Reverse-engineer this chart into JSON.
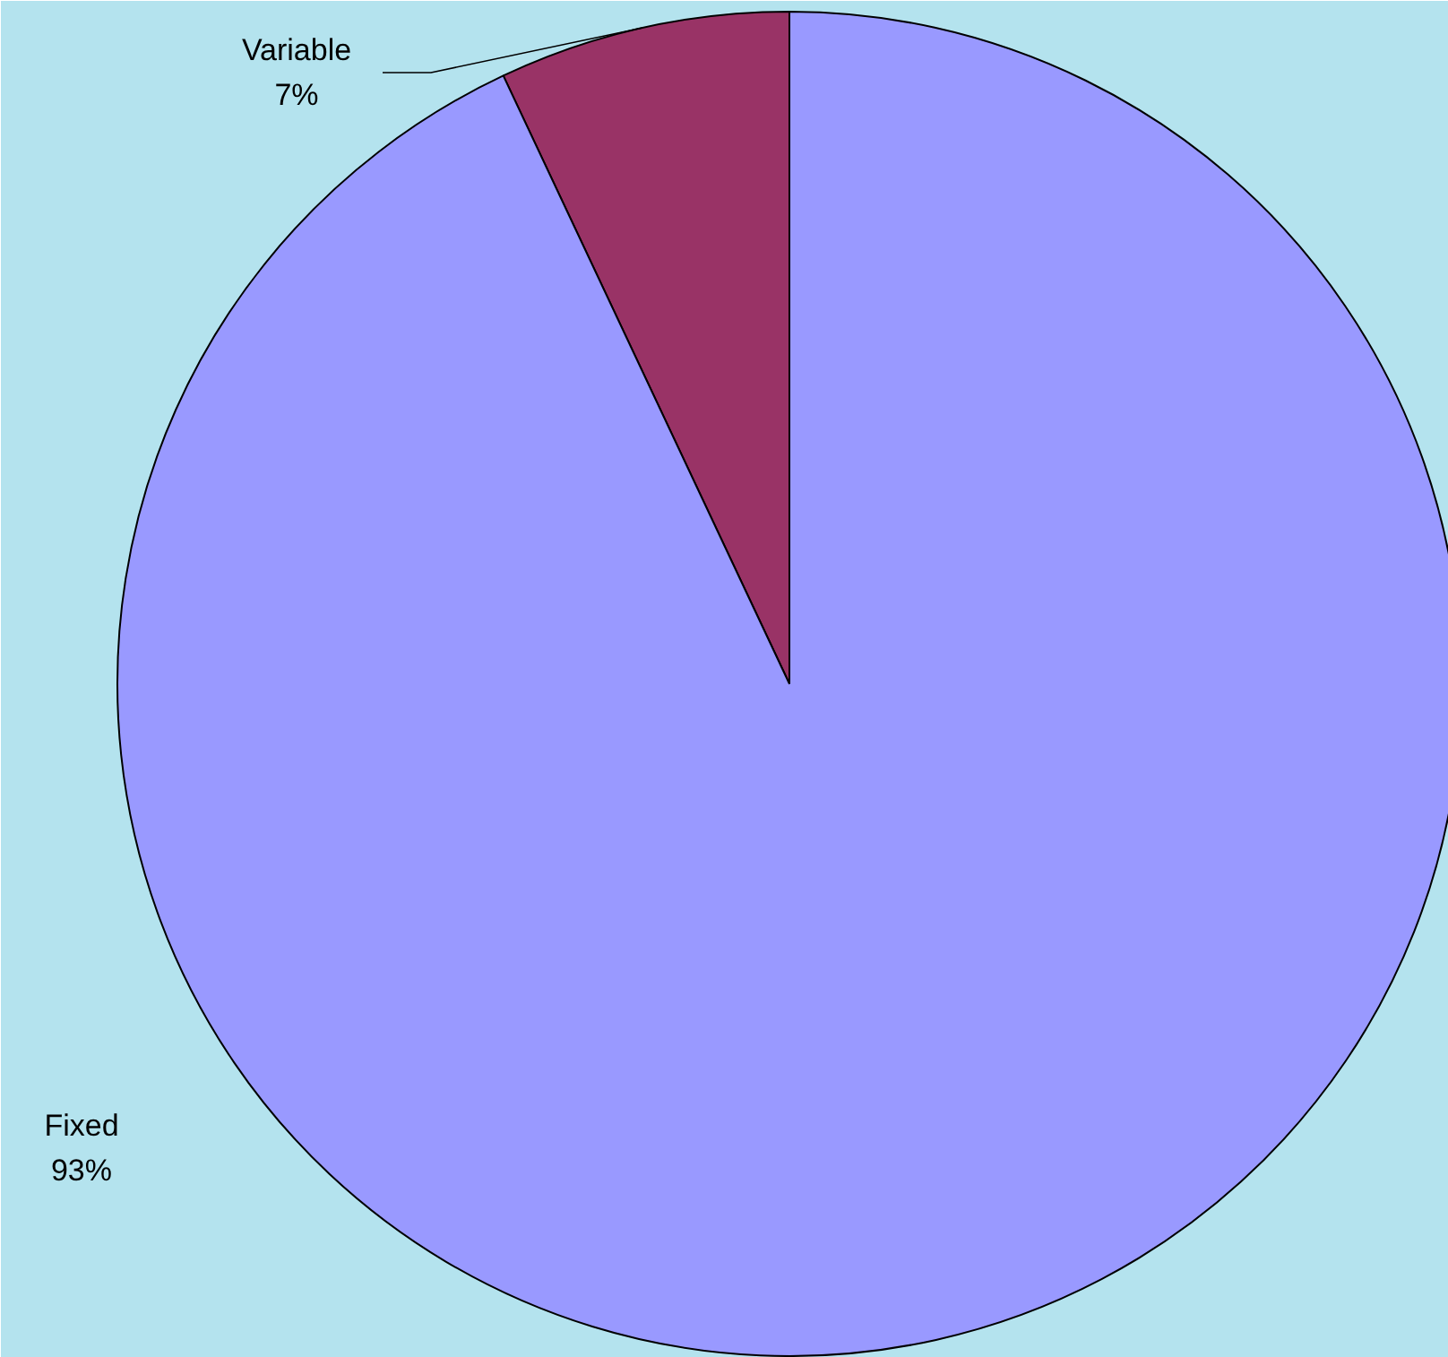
{
  "chart_data": {
    "type": "pie",
    "categories": [
      "Variable",
      "Fixed"
    ],
    "values": [
      7,
      93
    ],
    "colors": [
      "#993366",
      "#9999ff"
    ],
    "value_labels": [
      "7%",
      "93%"
    ]
  }
}
